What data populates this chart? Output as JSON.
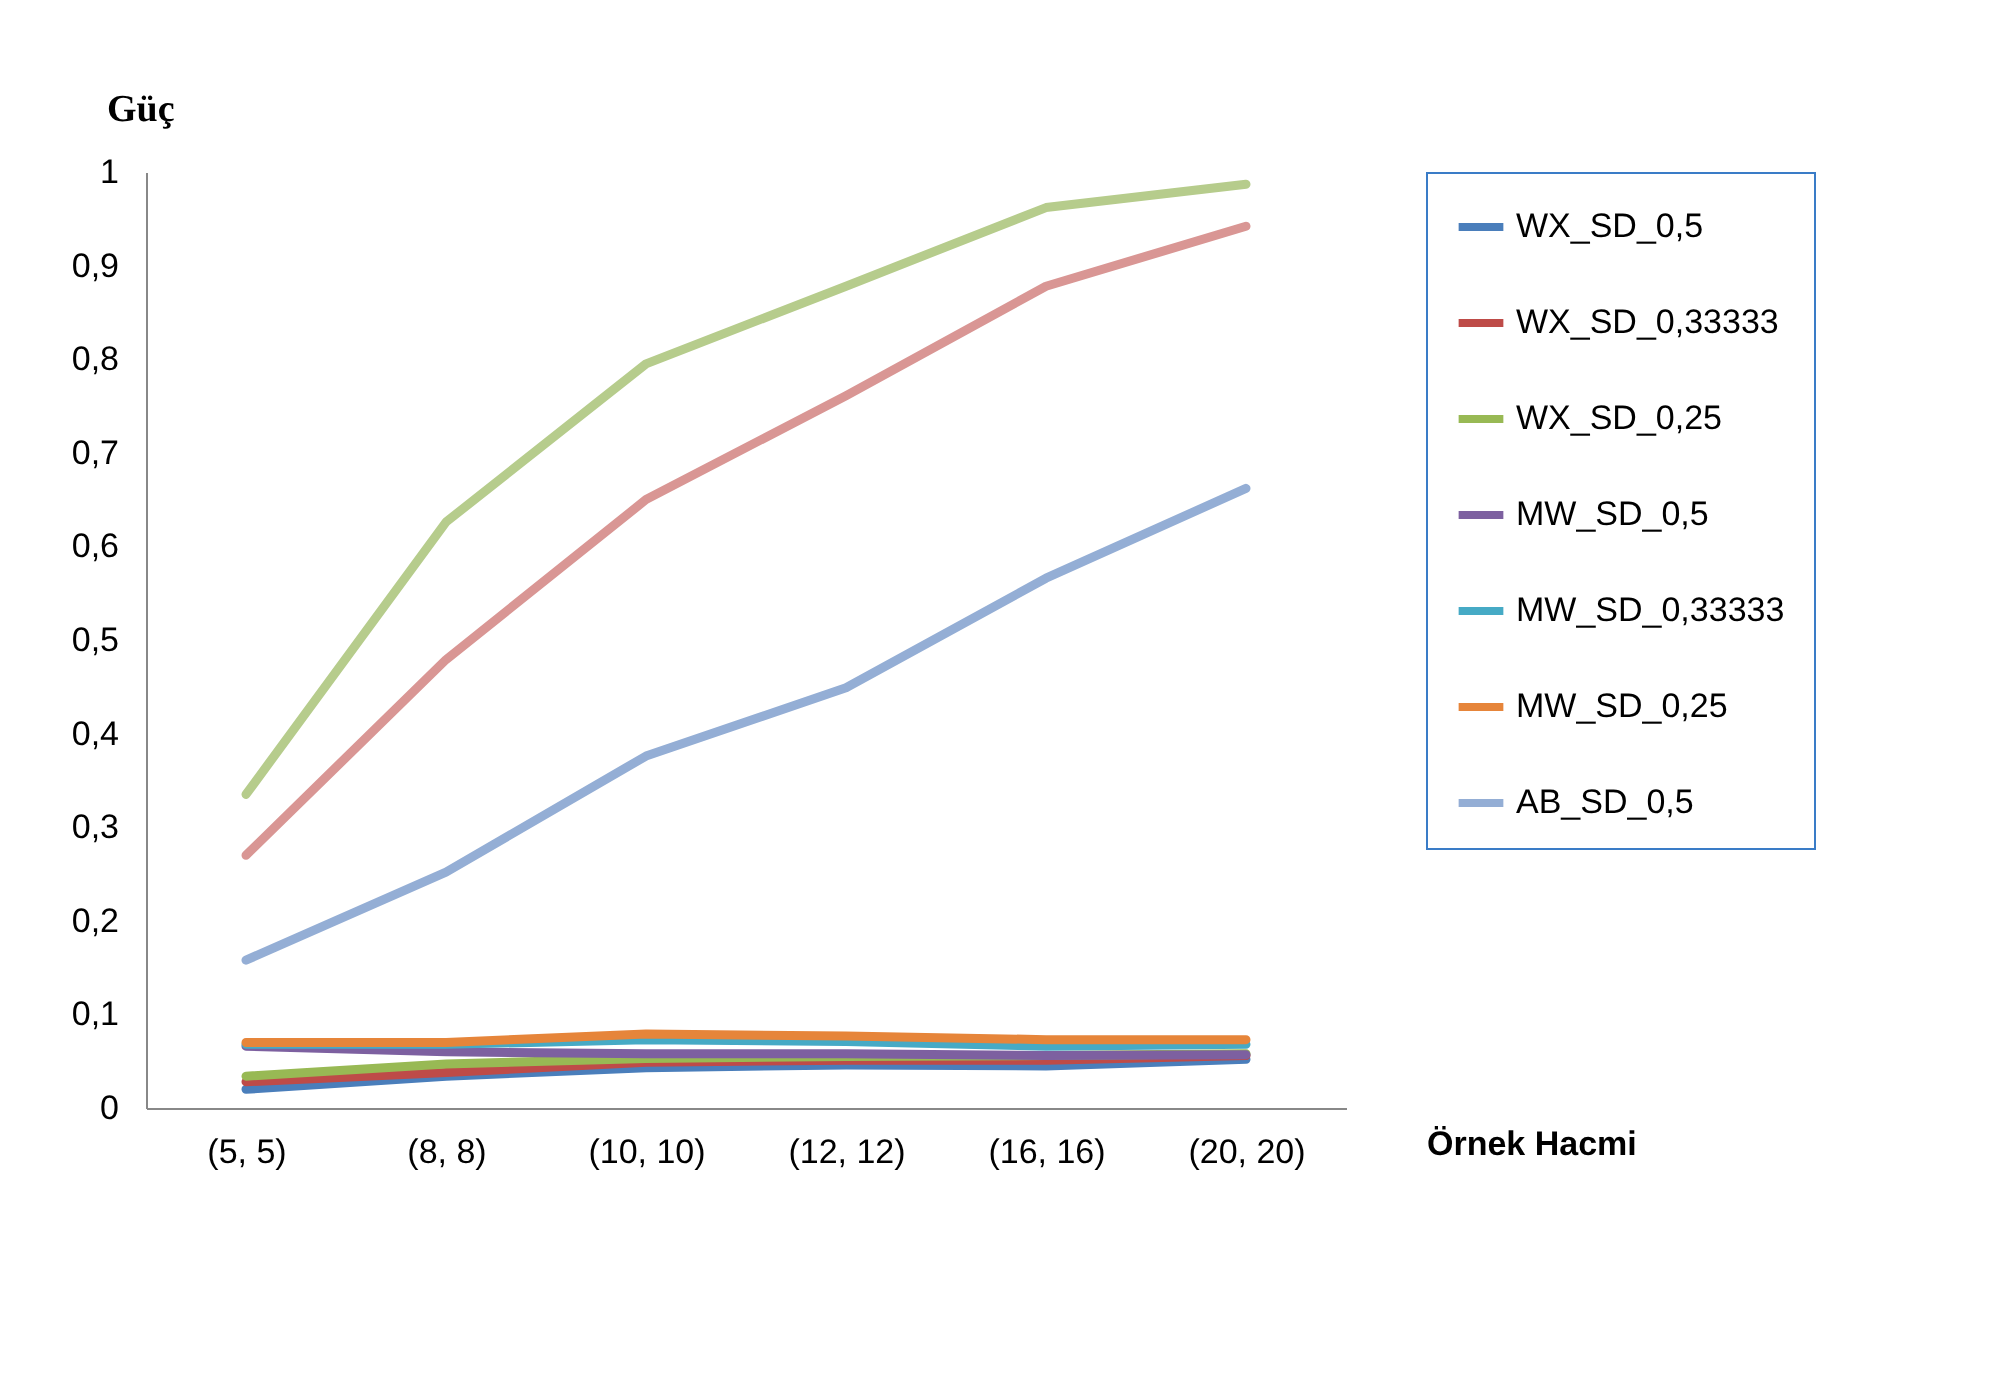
{
  "chart_data": {
    "type": "line",
    "ylabel": "Güç",
    "xlabel": "Örnek Hacmi",
    "categories": [
      "(5, 5)",
      "(8, 8)",
      "(10, 10)",
      "(12, 12)",
      "(16, 16)",
      "(20, 20)"
    ],
    "ylim": [
      0,
      1
    ],
    "yticks": [
      0,
      {
        "value": 0.1,
        "label": "0,1"
      },
      {
        "value": 0.2,
        "label": "0,2"
      },
      {
        "value": 0.3,
        "label": "0,3"
      },
      {
        "value": 0.4,
        "label": "0,4"
      },
      {
        "value": 0.5,
        "label": "0,5"
      },
      {
        "value": 0.6,
        "label": "0,6"
      },
      {
        "value": 0.7,
        "label": "0,7"
      },
      {
        "value": 0.8,
        "label": "0,8"
      },
      {
        "value": 0.9,
        "label": "0,9"
      },
      1
    ],
    "grid": false,
    "legend": "right",
    "marker": "none",
    "line_style": "solid",
    "series": [
      {
        "name": "WX_SD_0,5",
        "color": "#4a7ebb",
        "values": [
          0.02,
          0.034,
          0.043,
          0.046,
          0.045,
          0.052
        ]
      },
      {
        "name": "WX_SD_0,33333",
        "color": "#be4b48",
        "values": [
          0.028,
          0.038,
          0.049,
          0.051,
          0.051,
          0.056
        ]
      },
      {
        "name": "WX_SD_0,25",
        "color": "#98b954",
        "values": [
          0.034,
          0.047,
          0.053,
          0.055,
          0.056,
          0.058
        ]
      },
      {
        "name": "MW_SD_0,5",
        "color": "#7d60a0",
        "values": [
          0.066,
          0.06,
          0.058,
          0.058,
          0.056,
          0.057
        ]
      },
      {
        "name": "MW_SD_0,33333",
        "color": "#46aac5",
        "values": [
          0.068,
          0.068,
          0.073,
          0.071,
          0.066,
          0.068
        ]
      },
      {
        "name": "MW_SD_0,25",
        "color": "#e6853a",
        "values": [
          0.07,
          0.07,
          0.079,
          0.077,
          0.073,
          0.073
        ]
      },
      {
        "name": "AB_SD_0,5",
        "color": "#94aed5",
        "values": [
          0.158,
          0.252,
          0.376,
          0.449,
          0.566,
          0.662
        ]
      },
      {
        "color": "#d99694",
        "values": [
          0.27,
          0.479,
          0.65,
          0.761,
          0.878,
          0.942
        ]
      },
      {
        "color": "#b6cc8c",
        "values": [
          0.335,
          0.626,
          0.795,
          0.878,
          0.962,
          0.987
        ]
      }
    ]
  }
}
